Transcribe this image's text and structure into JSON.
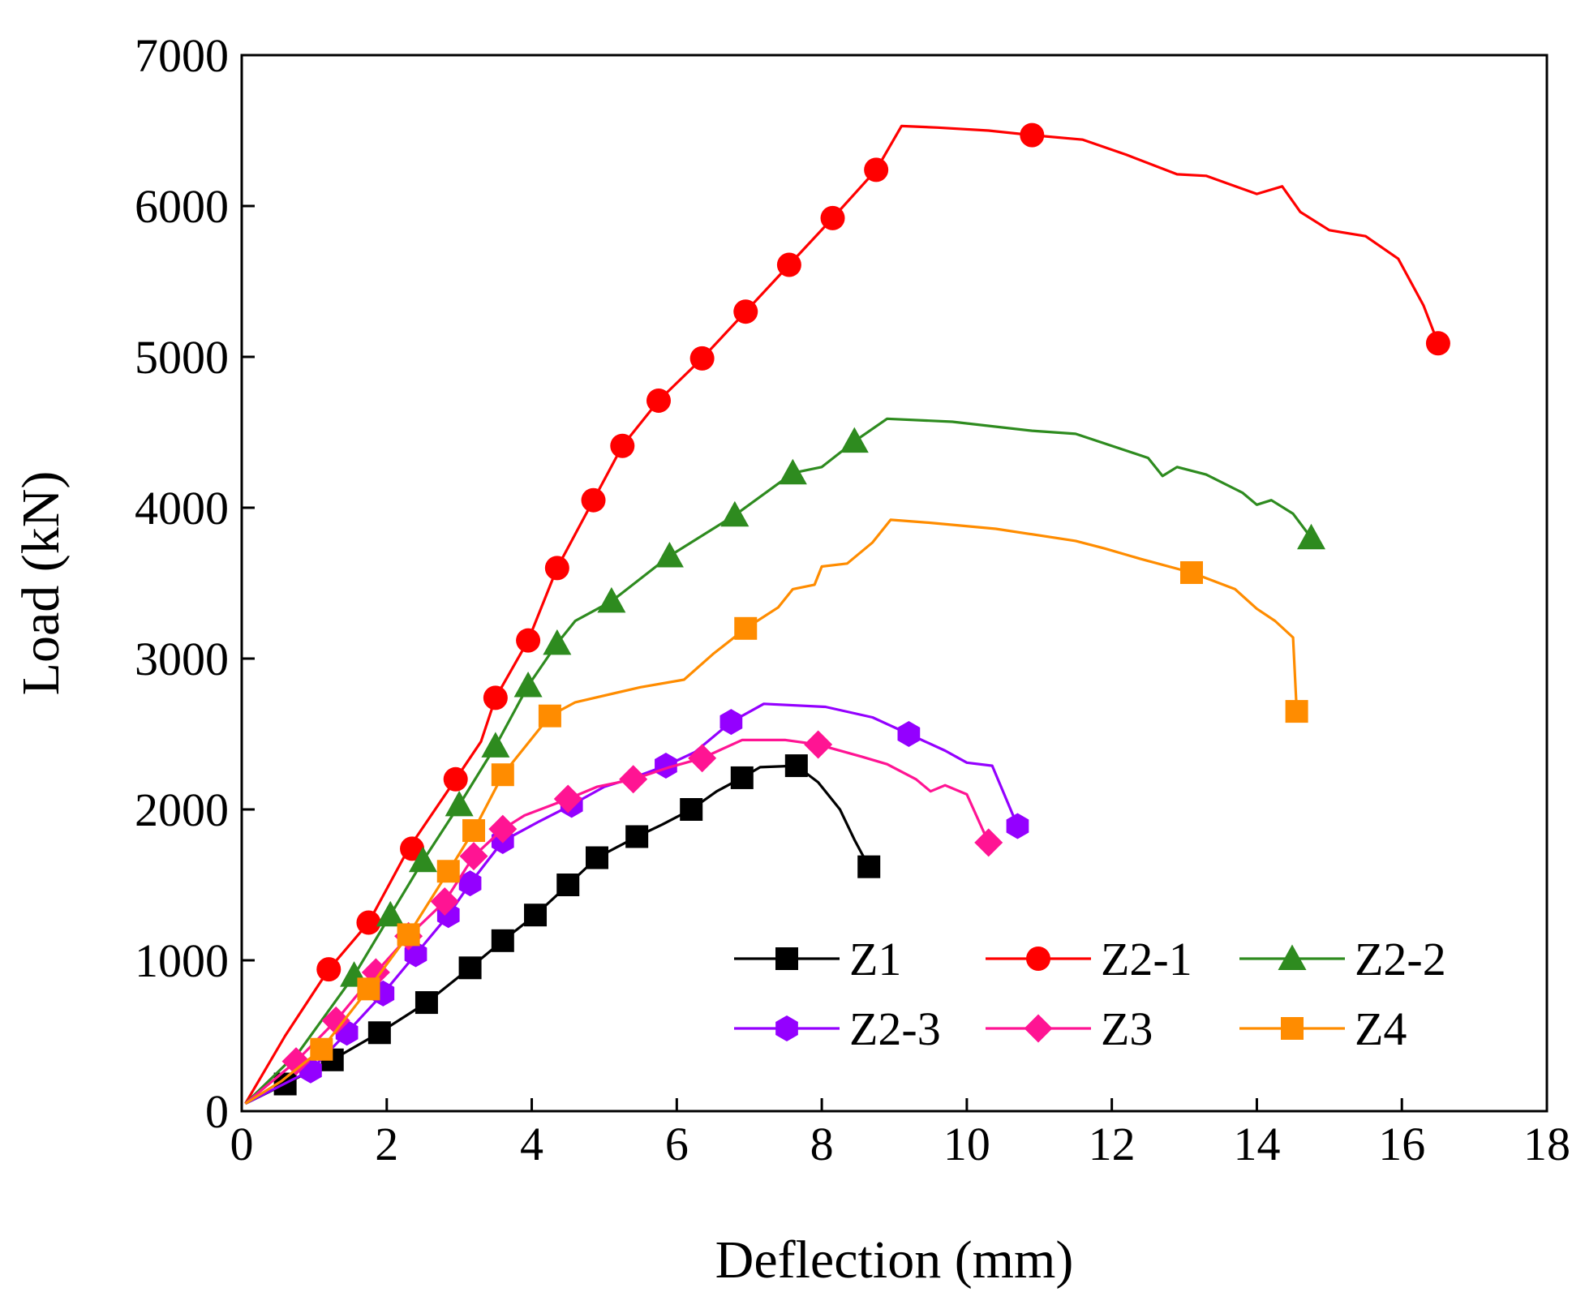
{
  "chart_data": {
    "type": "line",
    "title": "",
    "xlabel": "Deflection (mm)",
    "ylabel": "Load (kN)",
    "xlim": [
      0,
      18
    ],
    "ylim": [
      0,
      7000
    ],
    "xticks": [
      "0",
      "2",
      "4",
      "6",
      "8",
      "10",
      "12",
      "14",
      "16",
      "18"
    ],
    "yticks": [
      "0",
      "1000",
      "2000",
      "3000",
      "4000",
      "5000",
      "6000",
      "7000"
    ],
    "grid": false,
    "legend_position": "lower-right",
    "series": [
      {
        "name": "Z1",
        "color": "#000000",
        "marker": "square",
        "points": [
          [
            0.05,
            50
          ],
          [
            0.6,
            180
          ],
          [
            1.25,
            340
          ],
          [
            1.9,
            520
          ],
          [
            2.55,
            720
          ],
          [
            3.15,
            950
          ],
          [
            3.6,
            1130
          ],
          [
            4.05,
            1300
          ],
          [
            4.5,
            1500
          ],
          [
            4.9,
            1680
          ],
          [
            5.45,
            1820
          ],
          [
            5.8,
            1900
          ],
          [
            6.2,
            2000
          ],
          [
            6.55,
            2120
          ],
          [
            6.9,
            2210
          ],
          [
            7.15,
            2280
          ],
          [
            7.65,
            2290
          ],
          [
            7.95,
            2180
          ],
          [
            8.25,
            2000
          ],
          [
            8.45,
            1800
          ],
          [
            8.65,
            1620
          ]
        ],
        "markers": [
          [
            0.6,
            180
          ],
          [
            1.25,
            340
          ],
          [
            1.9,
            520
          ],
          [
            2.55,
            720
          ],
          [
            3.15,
            950
          ],
          [
            3.6,
            1130
          ],
          [
            4.05,
            1300
          ],
          [
            4.5,
            1500
          ],
          [
            4.9,
            1680
          ],
          [
            5.45,
            1820
          ],
          [
            6.2,
            2000
          ],
          [
            6.9,
            2210
          ],
          [
            7.65,
            2290
          ],
          [
            8.65,
            1620
          ]
        ]
      },
      {
        "name": "Z2-1",
        "color": "#ff0000",
        "marker": "circle",
        "points": [
          [
            0.05,
            50
          ],
          [
            0.6,
            500
          ],
          [
            1.2,
            940
          ],
          [
            1.75,
            1250
          ],
          [
            2.3,
            1740
          ],
          [
            2.95,
            2200
          ],
          [
            3.3,
            2450
          ],
          [
            3.5,
            2740
          ],
          [
            3.95,
            3120
          ],
          [
            4.35,
            3600
          ],
          [
            4.85,
            4050
          ],
          [
            5.25,
            4410
          ],
          [
            5.75,
            4710
          ],
          [
            6.35,
            4990
          ],
          [
            6.95,
            5300
          ],
          [
            7.55,
            5610
          ],
          [
            8.15,
            5920
          ],
          [
            8.75,
            6240
          ],
          [
            9.1,
            6530
          ],
          [
            9.6,
            6520
          ],
          [
            10.3,
            6500
          ],
          [
            10.9,
            6470
          ],
          [
            11.6,
            6440
          ],
          [
            12.2,
            6340
          ],
          [
            12.9,
            6210
          ],
          [
            13.3,
            6200
          ],
          [
            14.0,
            6080
          ],
          [
            14.35,
            6130
          ],
          [
            14.6,
            5960
          ],
          [
            15.0,
            5840
          ],
          [
            15.5,
            5800
          ],
          [
            15.95,
            5650
          ],
          [
            16.3,
            5340
          ],
          [
            16.5,
            5090
          ]
        ],
        "markers": [
          [
            1.2,
            940
          ],
          [
            1.75,
            1250
          ],
          [
            2.35,
            1740
          ],
          [
            2.95,
            2200
          ],
          [
            3.5,
            2740
          ],
          [
            3.95,
            3120
          ],
          [
            4.35,
            3600
          ],
          [
            4.85,
            4050
          ],
          [
            5.25,
            4410
          ],
          [
            5.75,
            4710
          ],
          [
            6.35,
            4990
          ],
          [
            6.95,
            5300
          ],
          [
            7.55,
            5610
          ],
          [
            8.15,
            5920
          ],
          [
            8.75,
            6240
          ],
          [
            10.9,
            6470
          ],
          [
            16.5,
            5090
          ]
        ]
      },
      {
        "name": "Z2-2",
        "color": "#2e8b1f",
        "marker": "triangle",
        "points": [
          [
            0.05,
            50
          ],
          [
            0.8,
            400
          ],
          [
            1.55,
            900
          ],
          [
            2.05,
            1300
          ],
          [
            2.5,
            1660
          ],
          [
            3.0,
            2030
          ],
          [
            3.5,
            2420
          ],
          [
            3.95,
            2820
          ],
          [
            4.35,
            3100
          ],
          [
            4.6,
            3250
          ],
          [
            5.1,
            3380
          ],
          [
            5.9,
            3680
          ],
          [
            6.8,
            3950
          ],
          [
            7.6,
            4230
          ],
          [
            8.0,
            4270
          ],
          [
            8.45,
            4440
          ],
          [
            8.9,
            4590
          ],
          [
            9.8,
            4570
          ],
          [
            10.9,
            4510
          ],
          [
            11.5,
            4490
          ],
          [
            12.5,
            4330
          ],
          [
            12.7,
            4210
          ],
          [
            12.9,
            4270
          ],
          [
            13.3,
            4220
          ],
          [
            13.8,
            4100
          ],
          [
            14.0,
            4020
          ],
          [
            14.2,
            4050
          ],
          [
            14.5,
            3960
          ],
          [
            14.75,
            3800
          ]
        ],
        "markers": [
          [
            1.55,
            900
          ],
          [
            2.05,
            1300
          ],
          [
            2.5,
            1660
          ],
          [
            3.0,
            2030
          ],
          [
            3.5,
            2420
          ],
          [
            3.95,
            2820
          ],
          [
            4.35,
            3100
          ],
          [
            5.1,
            3380
          ],
          [
            5.9,
            3680
          ],
          [
            6.8,
            3950
          ],
          [
            7.6,
            4230
          ],
          [
            8.45,
            4440
          ],
          [
            14.75,
            3800
          ]
        ]
      },
      {
        "name": "Z2-3",
        "color": "#9400ff",
        "marker": "hexagon",
        "points": [
          [
            0.05,
            50
          ],
          [
            0.95,
            270
          ],
          [
            1.45,
            520
          ],
          [
            1.95,
            780
          ],
          [
            2.4,
            1040
          ],
          [
            2.85,
            1300
          ],
          [
            3.15,
            1510
          ],
          [
            3.6,
            1790
          ],
          [
            4.1,
            1920
          ],
          [
            4.55,
            2030
          ],
          [
            5.0,
            2150
          ],
          [
            5.4,
            2210
          ],
          [
            5.85,
            2290
          ],
          [
            6.25,
            2380
          ],
          [
            6.75,
            2580
          ],
          [
            7.2,
            2700
          ],
          [
            8.05,
            2680
          ],
          [
            8.7,
            2610
          ],
          [
            9.2,
            2500
          ],
          [
            9.7,
            2390
          ],
          [
            10.0,
            2310
          ],
          [
            10.35,
            2290
          ],
          [
            10.7,
            1890
          ]
        ],
        "markers": [
          [
            0.95,
            270
          ],
          [
            1.45,
            520
          ],
          [
            1.95,
            780
          ],
          [
            2.4,
            1040
          ],
          [
            2.85,
            1300
          ],
          [
            3.15,
            1510
          ],
          [
            3.6,
            1790
          ],
          [
            4.55,
            2030
          ],
          [
            5.85,
            2290
          ],
          [
            6.75,
            2580
          ],
          [
            9.2,
            2500
          ],
          [
            10.7,
            1890
          ]
        ]
      },
      {
        "name": "Z3",
        "color": "#ff1493",
        "marker": "diamond",
        "points": [
          [
            0.05,
            50
          ],
          [
            0.75,
            330
          ],
          [
            1.3,
            600
          ],
          [
            1.85,
            920
          ],
          [
            2.3,
            1160
          ],
          [
            2.8,
            1390
          ],
          [
            3.2,
            1690
          ],
          [
            3.6,
            1870
          ],
          [
            3.9,
            1960
          ],
          [
            4.5,
            2070
          ],
          [
            4.9,
            2150
          ],
          [
            5.4,
            2200
          ],
          [
            5.9,
            2280
          ],
          [
            6.35,
            2340
          ],
          [
            6.9,
            2460
          ],
          [
            7.5,
            2460
          ],
          [
            7.95,
            2430
          ],
          [
            8.55,
            2350
          ],
          [
            8.9,
            2300
          ],
          [
            9.3,
            2200
          ],
          [
            9.5,
            2120
          ],
          [
            9.7,
            2160
          ],
          [
            10.0,
            2100
          ],
          [
            10.3,
            1780
          ]
        ],
        "markers": [
          [
            0.75,
            330
          ],
          [
            1.3,
            600
          ],
          [
            1.85,
            920
          ],
          [
            2.3,
            1160
          ],
          [
            2.8,
            1390
          ],
          [
            3.2,
            1690
          ],
          [
            3.6,
            1870
          ],
          [
            4.5,
            2070
          ],
          [
            5.4,
            2200
          ],
          [
            6.35,
            2340
          ],
          [
            7.95,
            2430
          ],
          [
            10.3,
            1780
          ]
        ]
      },
      {
        "name": "Z4",
        "color": "#ff8c00",
        "marker": "square",
        "points": [
          [
            0.05,
            50
          ],
          [
            0.55,
            200
          ],
          [
            1.1,
            410
          ],
          [
            1.75,
            810
          ],
          [
            2.3,
            1170
          ],
          [
            2.85,
            1590
          ],
          [
            3.2,
            1860
          ],
          [
            3.6,
            2230
          ],
          [
            4.25,
            2620
          ],
          [
            4.6,
            2710
          ],
          [
            5.5,
            2810
          ],
          [
            6.1,
            2860
          ],
          [
            6.5,
            3030
          ],
          [
            6.95,
            3200
          ],
          [
            7.4,
            3340
          ],
          [
            7.6,
            3460
          ],
          [
            7.9,
            3490
          ],
          [
            8.0,
            3610
          ],
          [
            8.35,
            3630
          ],
          [
            8.7,
            3770
          ],
          [
            8.95,
            3920
          ],
          [
            9.5,
            3900
          ],
          [
            10.4,
            3860
          ],
          [
            11.5,
            3780
          ],
          [
            11.9,
            3730
          ],
          [
            12.4,
            3660
          ],
          [
            13.1,
            3570
          ],
          [
            13.7,
            3460
          ],
          [
            14.0,
            3330
          ],
          [
            14.25,
            3250
          ],
          [
            14.5,
            3140
          ],
          [
            14.55,
            2650
          ]
        ],
        "markers": [
          [
            1.1,
            410
          ],
          [
            1.75,
            810
          ],
          [
            2.3,
            1170
          ],
          [
            2.85,
            1590
          ],
          [
            3.2,
            1860
          ],
          [
            3.6,
            2230
          ],
          [
            4.25,
            2620
          ],
          [
            6.95,
            3200
          ],
          [
            13.1,
            3570
          ],
          [
            14.55,
            2650
          ]
        ]
      }
    ]
  }
}
